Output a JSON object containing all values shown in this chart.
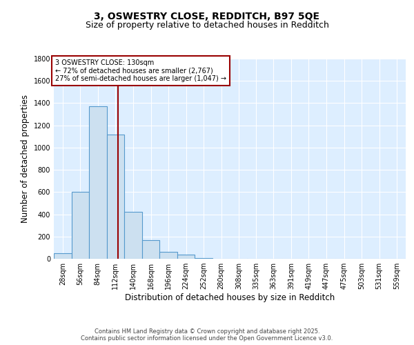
{
  "title1": "3, OSWESTRY CLOSE, REDDITCH, B97 5QE",
  "title2": "Size of property relative to detached houses in Redditch",
  "xlabel": "Distribution of detached houses by size in Redditch",
  "ylabel": "Number of detached properties",
  "bin_edges": [
    28,
    56,
    84,
    112,
    140,
    168,
    196,
    224,
    252,
    280,
    308,
    335,
    363,
    391,
    419,
    447,
    475,
    503,
    531,
    559,
    587
  ],
  "bar_heights": [
    50,
    600,
    1370,
    1120,
    425,
    165,
    65,
    35,
    5,
    3,
    2,
    1,
    1,
    0,
    0,
    0,
    0,
    0,
    0,
    0
  ],
  "bar_facecolor": "#cce0f0",
  "bar_edgecolor": "#5599cc",
  "vline_x": 130,
  "vline_color": "#990000",
  "annotation_text": "3 OSWESTRY CLOSE: 130sqm\n← 72% of detached houses are smaller (2,767)\n27% of semi-detached houses are larger (1,047) →",
  "annotation_box_color": "#990000",
  "background_color": "#ddeeff",
  "ylim": [
    0,
    1800
  ],
  "yticks": [
    0,
    200,
    400,
    600,
    800,
    1000,
    1200,
    1400,
    1600,
    1800
  ],
  "footer_text": "Contains HM Land Registry data © Crown copyright and database right 2025.\nContains public sector information licensed under the Open Government Licence v3.0.",
  "title_fontsize": 10,
  "subtitle_fontsize": 9,
  "tick_label_fontsize": 7,
  "axis_label_fontsize": 8.5
}
